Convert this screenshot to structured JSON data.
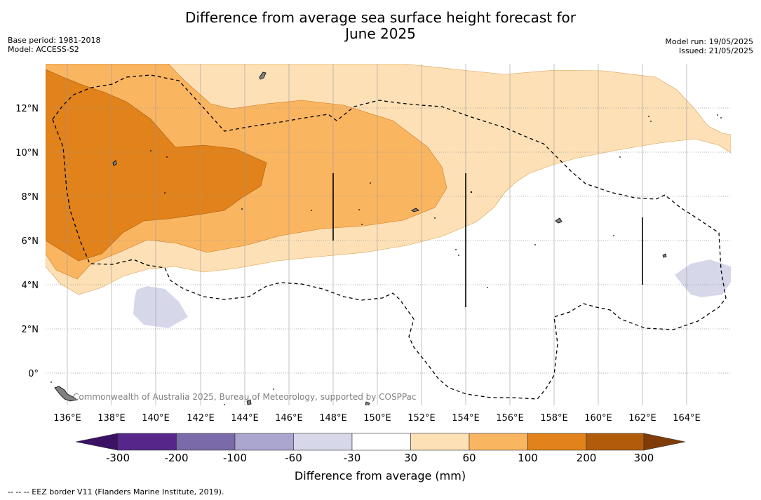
{
  "title_line1": "Difference from average sea surface height forecast for",
  "title_line2": "June 2025",
  "meta_left": [
    "Base period: 1981-2018",
    "Model: ACCESS-S2"
  ],
  "meta_right": [
    "Model run: 19/05/2025",
    "Issued: 21/05/2025"
  ],
  "map": {
    "lon_range": [
      135,
      166
    ],
    "lat_range": [
      -1.5,
      14
    ],
    "lon_ticks": [
      "136°E",
      "138°E",
      "140°E",
      "142°E",
      "144°E",
      "146°E",
      "148°E",
      "150°E",
      "152°E",
      "154°E",
      "156°E",
      "158°E",
      "160°E",
      "162°E",
      "164°E"
    ],
    "lat_ticks": [
      "0°",
      "2°N",
      "4°N",
      "6°N",
      "8°N",
      "10°N",
      "12°N"
    ],
    "copyright": "Commonwealth of Australia 2025, Bureau of Meteorology, supported by COSPPac"
  },
  "colorbar": {
    "levels": [
      "-300",
      "-200",
      "-100",
      "-60",
      "-30",
      "30",
      "60",
      "100",
      "200",
      "300"
    ],
    "colors": [
      "#3b1163",
      "#57268a",
      "#7a6aaa",
      "#aba6cf",
      "#d6d7e9",
      "#ffffff",
      "#fde0b6",
      "#fab561",
      "#e1821a",
      "#b15c0b",
      "#7f3b08"
    ],
    "label": "Difference from average (mm)"
  },
  "footnote": "--  --  -- EEZ border V11 (Flanders Marine Institute, 2019)."
}
